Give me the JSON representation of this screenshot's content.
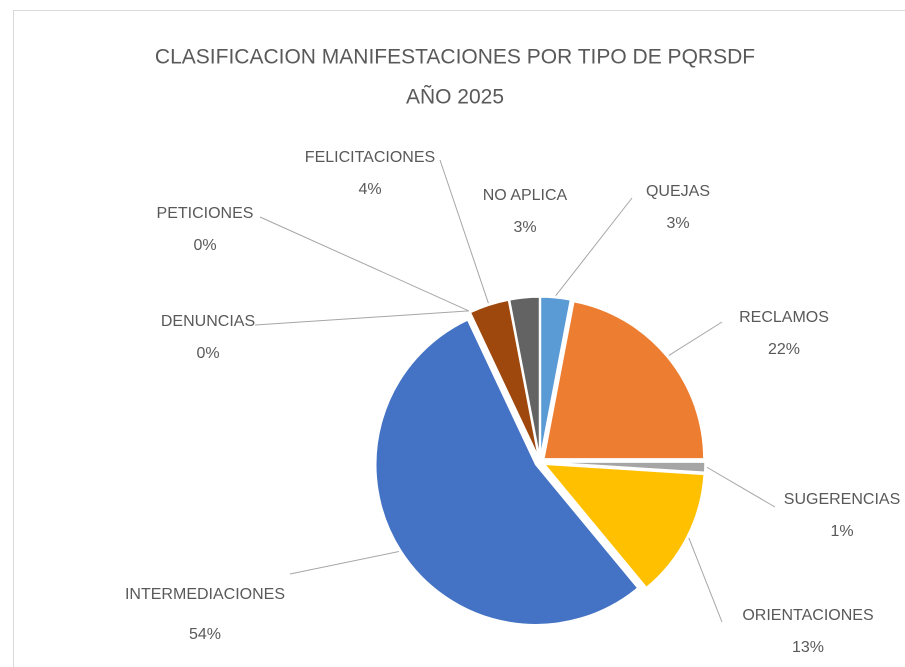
{
  "chart_data": {
    "type": "pie",
    "title": "CLASIFICACION MANIFESTACIONES POR TIPO DE PQRSDF",
    "subtitle": "AÑO 2025",
    "categories": [
      "QUEJAS",
      "RECLAMOS",
      "SUGERENCIAS",
      "ORIENTACIONES",
      "INTERMEDIACIONES",
      "DENUNCIAS",
      "PETICIONES",
      "FELICITACIONES",
      "NO APLICA"
    ],
    "values": [
      3,
      22,
      1,
      13,
      54,
      0,
      0,
      4,
      3
    ],
    "value_labels": [
      "3%",
      "22%",
      "1%",
      "13%",
      "54%",
      "0%",
      "0%",
      "4%",
      "3%"
    ],
    "colors": [
      "#5b9bd5",
      "#ed7d31",
      "#a5a5a5",
      "#ffc000",
      "#4472c4",
      "#70ad47",
      "#264478",
      "#9e480e",
      "#636363"
    ]
  }
}
